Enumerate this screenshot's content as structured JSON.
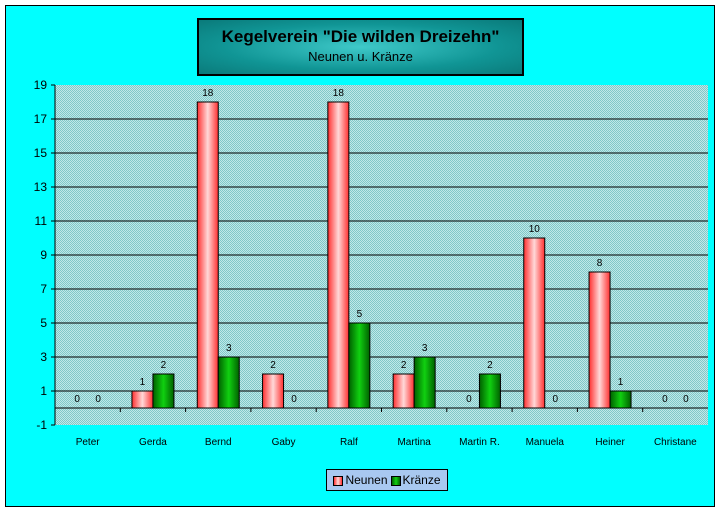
{
  "chart_data": {
    "type": "bar",
    "title": "Kegelverein \"Die wilden Dreizehn\"",
    "subtitle": "Neunen u. Kränze",
    "categories": [
      "Peter",
      "Gerda",
      "Bernd",
      "Gaby",
      "Ralf",
      "Martina",
      "Martin R.",
      "Manuela",
      "Heiner",
      "Christane"
    ],
    "series": [
      {
        "name": "Neunen",
        "values": [
          0,
          1,
          18,
          2,
          18,
          2,
          0,
          10,
          8,
          0
        ],
        "color": "#ff3333"
      },
      {
        "name": "Kränze",
        "values": [
          0,
          2,
          3,
          0,
          5,
          3,
          2,
          0,
          1,
          0
        ],
        "color": "#00a000"
      }
    ],
    "ylim": [
      -1,
      19
    ],
    "yticks": [
      -1,
      1,
      3,
      5,
      7,
      9,
      11,
      13,
      15,
      17,
      19
    ],
    "grid": true,
    "data_labels": true,
    "legend": "bottom"
  },
  "colors": {
    "background": "#00ffff",
    "plot_area": "#a8e0e0",
    "title_box": "#109595"
  }
}
